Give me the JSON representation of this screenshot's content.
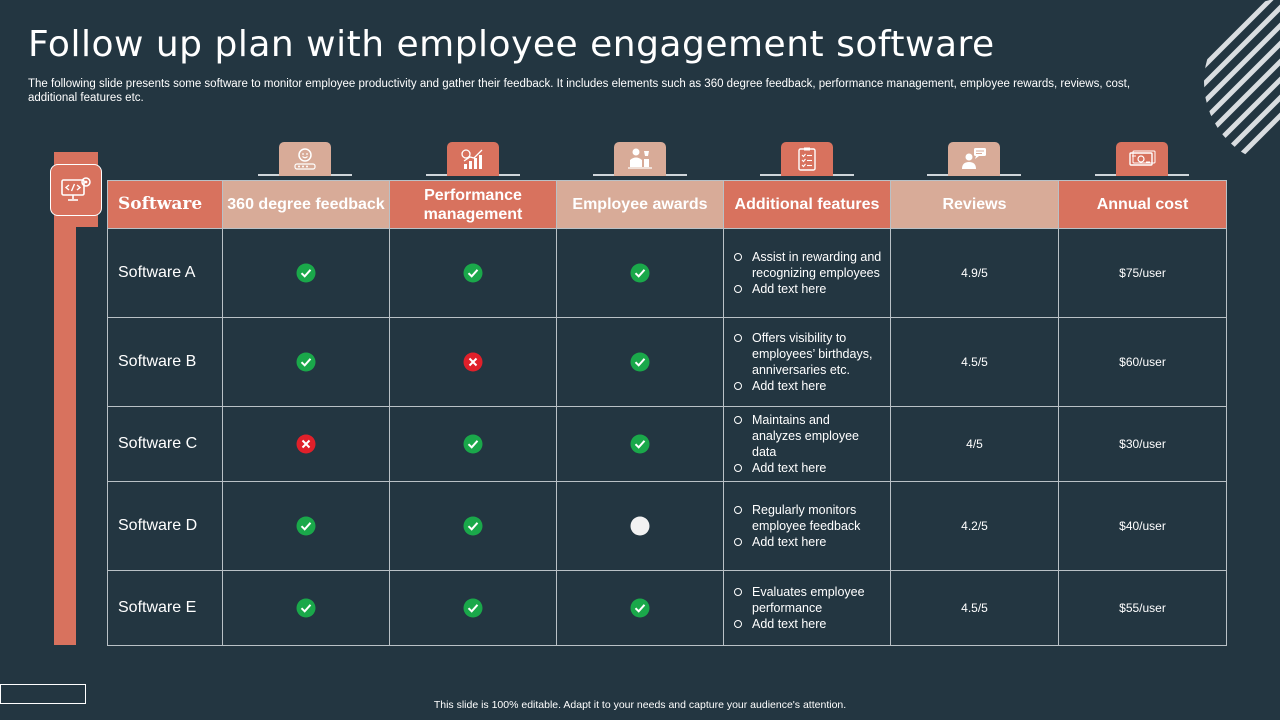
{
  "slide": {
    "title": "Follow up plan with employee engagement software",
    "subtitle": "The following slide presents some software to monitor employee productivity and gather their feedback. It includes elements such as 360 degree feedback, performance management, employee rewards, reviews, cost, additional features etc.",
    "footer": "This slide is 100% editable.  Adapt it to your needs and capture your audience's attention."
  },
  "colors": {
    "background": "#233641",
    "accent": "#d8725e",
    "accent_light": "#d8ab98",
    "check": "#1aa84a",
    "cross": "#e0202a"
  },
  "table": {
    "headers": [
      {
        "label": "Software",
        "icon": "code-monitor-icon"
      },
      {
        "label": "360 degree feedback",
        "icon": "smiley-rating-icon"
      },
      {
        "label": "Performance management",
        "icon": "growth-chart-icon"
      },
      {
        "label": "Employee awards",
        "icon": "award-podium-icon"
      },
      {
        "label": "Additional features",
        "icon": "checklist-clipboard-icon"
      },
      {
        "label": "Reviews",
        "icon": "user-chat-icon"
      },
      {
        "label": "Annual cost",
        "icon": "money-icon"
      }
    ],
    "rows": [
      {
        "name": "Software A",
        "feedback": "check",
        "performance": "check",
        "awards": "check",
        "features": [
          "Assist in rewarding and recognizing employees",
          "Add text here"
        ],
        "reviews": "4.9/5",
        "cost": "$75/user"
      },
      {
        "name": "Software B",
        "feedback": "check",
        "performance": "cross",
        "awards": "check",
        "features": [
          "Offers visibility to employees’ birthdays, anniversaries  etc.",
          "Add text here"
        ],
        "reviews": "4.5/5",
        "cost": "$60/user"
      },
      {
        "name": "Software C",
        "feedback": "cross",
        "performance": "check",
        "awards": "check",
        "features": [
          "Maintains and analyzes employee data",
          "Add text here"
        ],
        "reviews": "4/5",
        "cost": "$30/user"
      },
      {
        "name": "Software D",
        "feedback": "check",
        "performance": "check",
        "awards": "empty",
        "features": [
          "Regularly monitors employee feedback",
          "Add text here"
        ],
        "reviews": "4.2/5",
        "cost": "$40/user"
      },
      {
        "name": "Software E",
        "feedback": "check",
        "performance": "check",
        "awards": "check",
        "features": [
          "Evaluates employee performance",
          "Add text here"
        ],
        "reviews": "4.5/5",
        "cost": "$55/user"
      }
    ]
  }
}
